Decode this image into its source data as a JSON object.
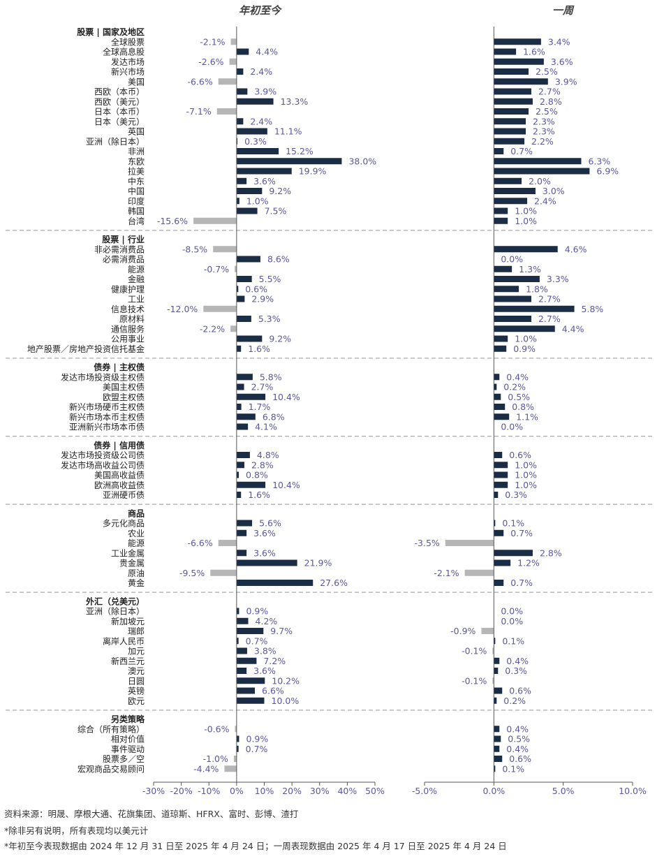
{
  "chart_data": {
    "type": "bar",
    "orientation": "horizontal",
    "panels": [
      {
        "title": "年初至今",
        "xlim": [
          -30,
          50
        ],
        "ticks": [
          "-30%",
          "-20%",
          "-10%",
          "0%",
          "10%",
          "20%",
          "30%",
          "40%",
          "50%"
        ]
      },
      {
        "title": "一周",
        "xlim": [
          -5,
          10
        ],
        "ticks": [
          "-5.0%",
          "0.0%",
          "5.0%",
          "10.0%"
        ]
      }
    ],
    "colors": {
      "positive": "#1b2d45",
      "negative": "#b6b6b6",
      "value_label": "#5a56a0",
      "divider": "#aaaaaa"
    },
    "groups": [
      {
        "header": "股票 | 国家及地区",
        "rows": [
          {
            "label": "全球股票",
            "ytd": -2.1,
            "ytd_label": "-2.1%",
            "week": 3.4,
            "week_label": "3.4%"
          },
          {
            "label": "全球高息股",
            "ytd": 4.4,
            "ytd_label": "4.4%",
            "week": 1.6,
            "week_label": "1.6%"
          },
          {
            "label": "发达市场",
            "ytd": -2.6,
            "ytd_label": "-2.6%",
            "week": 3.6,
            "week_label": "3.6%"
          },
          {
            "label": "新兴市场",
            "ytd": 2.4,
            "ytd_label": "2.4%",
            "week": 2.5,
            "week_label": "2.5%"
          },
          {
            "label": "美国",
            "ytd": -6.6,
            "ytd_label": "-6.6%",
            "week": 3.9,
            "week_label": "3.9%"
          },
          {
            "label": "西欧（本币）",
            "ytd": 3.9,
            "ytd_label": "3.9%",
            "week": 2.7,
            "week_label": "2.7%"
          },
          {
            "label": "西欧（美元）",
            "ytd": 13.3,
            "ytd_label": "13.3%",
            "week": 2.8,
            "week_label": "2.8%"
          },
          {
            "label": "日本（本币）",
            "ytd": -7.1,
            "ytd_label": "-7.1%",
            "week": 2.5,
            "week_label": "2.5%"
          },
          {
            "label": "日本（美元）",
            "ytd": 2.4,
            "ytd_label": "2.4%",
            "week": 2.3,
            "week_label": "2.3%"
          },
          {
            "label": "英国",
            "ytd": 11.1,
            "ytd_label": "11.1%",
            "week": 2.3,
            "week_label": "2.3%"
          },
          {
            "label": "亚洲（除日本）",
            "ytd": 0.3,
            "ytd_label": "0.3%",
            "week": 2.2,
            "week_label": "2.2%"
          },
          {
            "label": "非洲",
            "ytd": 15.2,
            "ytd_label": "15.2%",
            "week": 0.7,
            "week_label": "0.7%"
          },
          {
            "label": "东欧",
            "ytd": 38.0,
            "ytd_label": "38.0%",
            "week": 6.3,
            "week_label": "6.3%"
          },
          {
            "label": "拉美",
            "ytd": 19.9,
            "ytd_label": "19.9%",
            "week": 6.9,
            "week_label": "6.9%"
          },
          {
            "label": "中东",
            "ytd": 3.6,
            "ytd_label": "3.6%",
            "week": 2.0,
            "week_label": "2.0%"
          },
          {
            "label": "中国",
            "ytd": 9.2,
            "ytd_label": "9.2%",
            "week": 3.0,
            "week_label": "3.0%"
          },
          {
            "label": "印度",
            "ytd": 1.0,
            "ytd_label": "1.0%",
            "week": 2.4,
            "week_label": "2.4%"
          },
          {
            "label": "韩国",
            "ytd": 7.5,
            "ytd_label": "7.5%",
            "week": 1.0,
            "week_label": "1.0%"
          },
          {
            "label": "台湾",
            "ytd": -15.6,
            "ytd_label": "-15.6%",
            "week": 1.0,
            "week_label": "1.0%"
          }
        ]
      },
      {
        "header": "股票 | 行业",
        "rows": [
          {
            "label": "非必需消费品",
            "ytd": -8.5,
            "ytd_label": "-8.5%",
            "week": 4.6,
            "week_label": "4.6%"
          },
          {
            "label": "必需消费品",
            "ytd": 8.6,
            "ytd_label": "8.6%",
            "week": 0.0,
            "week_label": "0.0%"
          },
          {
            "label": "能源",
            "ytd": -0.7,
            "ytd_label": "-0.7%",
            "week": 1.3,
            "week_label": "1.3%"
          },
          {
            "label": "金融",
            "ytd": 5.5,
            "ytd_label": "5.5%",
            "week": 3.3,
            "week_label": "3.3%"
          },
          {
            "label": "健康护理",
            "ytd": 0.6,
            "ytd_label": "0.6%",
            "week": 1.8,
            "week_label": "1.8%"
          },
          {
            "label": "工业",
            "ytd": 2.9,
            "ytd_label": "2.9%",
            "week": 2.7,
            "week_label": "2.7%"
          },
          {
            "label": "信息技术",
            "ytd": -12.0,
            "ytd_label": "-12.0%",
            "week": 5.8,
            "week_label": "5.8%"
          },
          {
            "label": "原材料",
            "ytd": 5.3,
            "ytd_label": "5.3%",
            "week": 2.7,
            "week_label": "2.7%"
          },
          {
            "label": "通信服务",
            "ytd": -2.2,
            "ytd_label": "-2.2%",
            "week": 4.4,
            "week_label": "4.4%"
          },
          {
            "label": "公用事业",
            "ytd": 9.2,
            "ytd_label": "9.2%",
            "week": 1.0,
            "week_label": "1.0%"
          },
          {
            "label": "地产股票／房地产投资信托基金",
            "ytd": 1.6,
            "ytd_label": "1.6%",
            "week": 0.9,
            "week_label": "0.9%"
          }
        ]
      },
      {
        "header": "债券 | 主权债",
        "rows": [
          {
            "label": "发达市场投资级主权债",
            "ytd": 5.8,
            "ytd_label": "5.8%",
            "week": 0.4,
            "week_label": "0.4%"
          },
          {
            "label": "美国主权债",
            "ytd": 2.7,
            "ytd_label": "2.7%",
            "week": 0.2,
            "week_label": "0.2%"
          },
          {
            "label": "欧盟主权债",
            "ytd": 10.4,
            "ytd_label": "10.4%",
            "week": 0.5,
            "week_label": "0.5%"
          },
          {
            "label": "新兴市场硬币主权债",
            "ytd": 1.7,
            "ytd_label": "1.7%",
            "week": 0.8,
            "week_label": "0.8%"
          },
          {
            "label": "新兴市场本币主权债",
            "ytd": 6.8,
            "ytd_label": "6.8%",
            "week": 1.1,
            "week_label": "1.1%"
          },
          {
            "label": "亚洲新兴市场本币债",
            "ytd": 4.1,
            "ytd_label": "4.1%",
            "week": 0.0,
            "week_label": "0.0%"
          }
        ]
      },
      {
        "header": "债券 | 信用债",
        "rows": [
          {
            "label": "发达市场投资级公司债",
            "ytd": 4.8,
            "ytd_label": "4.8%",
            "week": 0.6,
            "week_label": "0.6%"
          },
          {
            "label": "发达市场高收益公司债",
            "ytd": 2.8,
            "ytd_label": "2.8%",
            "week": 1.0,
            "week_label": "1.0%"
          },
          {
            "label": "美国高收益债",
            "ytd": 0.8,
            "ytd_label": "0.8%",
            "week": 1.0,
            "week_label": "1.0%"
          },
          {
            "label": "欧洲高收益债",
            "ytd": 10.4,
            "ytd_label": "10.4%",
            "week": 1.0,
            "week_label": "1.0%"
          },
          {
            "label": "亚洲硬币债",
            "ytd": 1.6,
            "ytd_label": "1.6%",
            "week": 0.3,
            "week_label": "0.3%"
          }
        ]
      },
      {
        "header": "商品",
        "rows": [
          {
            "label": "多元化商品",
            "ytd": 5.6,
            "ytd_label": "5.6%",
            "week": 0.1,
            "week_label": "0.1%"
          },
          {
            "label": "农业",
            "ytd": 3.6,
            "ytd_label": "3.6%",
            "week": 0.7,
            "week_label": "0.7%"
          },
          {
            "label": "能源",
            "ytd": -6.6,
            "ytd_label": "-6.6%",
            "week": -3.5,
            "week_label": "-3.5%"
          },
          {
            "label": "工业金属",
            "ytd": 3.6,
            "ytd_label": "3.6%",
            "week": 2.8,
            "week_label": "2.8%"
          },
          {
            "label": "贵金属",
            "ytd": 21.9,
            "ytd_label": "21.9%",
            "week": 1.2,
            "week_label": "1.2%"
          },
          {
            "label": "原油",
            "ytd": -9.5,
            "ytd_label": "-9.5%",
            "week": -2.1,
            "week_label": "-2.1%"
          },
          {
            "label": "黄金",
            "ytd": 27.6,
            "ytd_label": "27.6%",
            "week": 0.7,
            "week_label": "0.7%"
          }
        ]
      },
      {
        "header": "外汇（兑美元）",
        "rows": [
          {
            "label": "亚洲（除日本）",
            "ytd": 0.9,
            "ytd_label": "0.9%",
            "week": 0.0,
            "week_label": "0.0%"
          },
          {
            "label": "新加坡元",
            "ytd": 4.2,
            "ytd_label": "4.2%",
            "week": 0.0,
            "week_label": "0.0%"
          },
          {
            "label": "瑞郎",
            "ytd": 9.7,
            "ytd_label": "9.7%",
            "week": -0.9,
            "week_label": "-0.9%"
          },
          {
            "label": "离岸人民币",
            "ytd": 0.7,
            "ytd_label": "0.7%",
            "week": 0.1,
            "week_label": "0.1%"
          },
          {
            "label": "加元",
            "ytd": 3.8,
            "ytd_label": "3.8%",
            "week": -0.1,
            "week_label": "-0.1%"
          },
          {
            "label": "新西兰元",
            "ytd": 7.2,
            "ytd_label": "7.2%",
            "week": 0.4,
            "week_label": "0.4%"
          },
          {
            "label": "澳元",
            "ytd": 3.6,
            "ytd_label": "3.6%",
            "week": 0.3,
            "week_label": "0.3%"
          },
          {
            "label": "日圆",
            "ytd": 10.2,
            "ytd_label": "10.2%",
            "week": -0.1,
            "week_label": "-0.1%"
          },
          {
            "label": "英镑",
            "ytd": 6.6,
            "ytd_label": "6.6%",
            "week": 0.6,
            "week_label": "0.6%"
          },
          {
            "label": "欧元",
            "ytd": 10.0,
            "ytd_label": "10.0%",
            "week": 0.2,
            "week_label": "0.2%"
          }
        ]
      },
      {
        "header": "另类策略",
        "rows": [
          {
            "label": "综合（所有策略）",
            "ytd": -0.6,
            "ytd_label": "-0.6%",
            "week": 0.4,
            "week_label": "0.4%"
          },
          {
            "label": "相对价值",
            "ytd": 0.9,
            "ytd_label": "0.9%",
            "week": 0.5,
            "week_label": "0.5%"
          },
          {
            "label": "事件驱动",
            "ytd": 0.7,
            "ytd_label": "0.7%",
            "week": 0.4,
            "week_label": "0.4%"
          },
          {
            "label": "股票多／空",
            "ytd": -1.0,
            "ytd_label": "-1.0%",
            "week": 0.6,
            "week_label": "0.6%"
          },
          {
            "label": "宏观商品交易顾问",
            "ytd": -4.4,
            "ytd_label": "-4.4%",
            "week": 0.1,
            "week_label": "0.1%"
          }
        ]
      }
    ]
  },
  "footnotes": {
    "source": "资料来源：明晟、摩根大通、花旗集团、道琼斯、HFRX、富时、彭博、渣打",
    "note_currency": "*除非另有说明，所有表现均以美元计",
    "note_period": "*年初至今表现数据由 2024 年 12 月 31 日至 2025 年 4 月 24 日；一周表现数据由 2025 年 4 月 17 日至 2025 年 4 月 24 日"
  }
}
